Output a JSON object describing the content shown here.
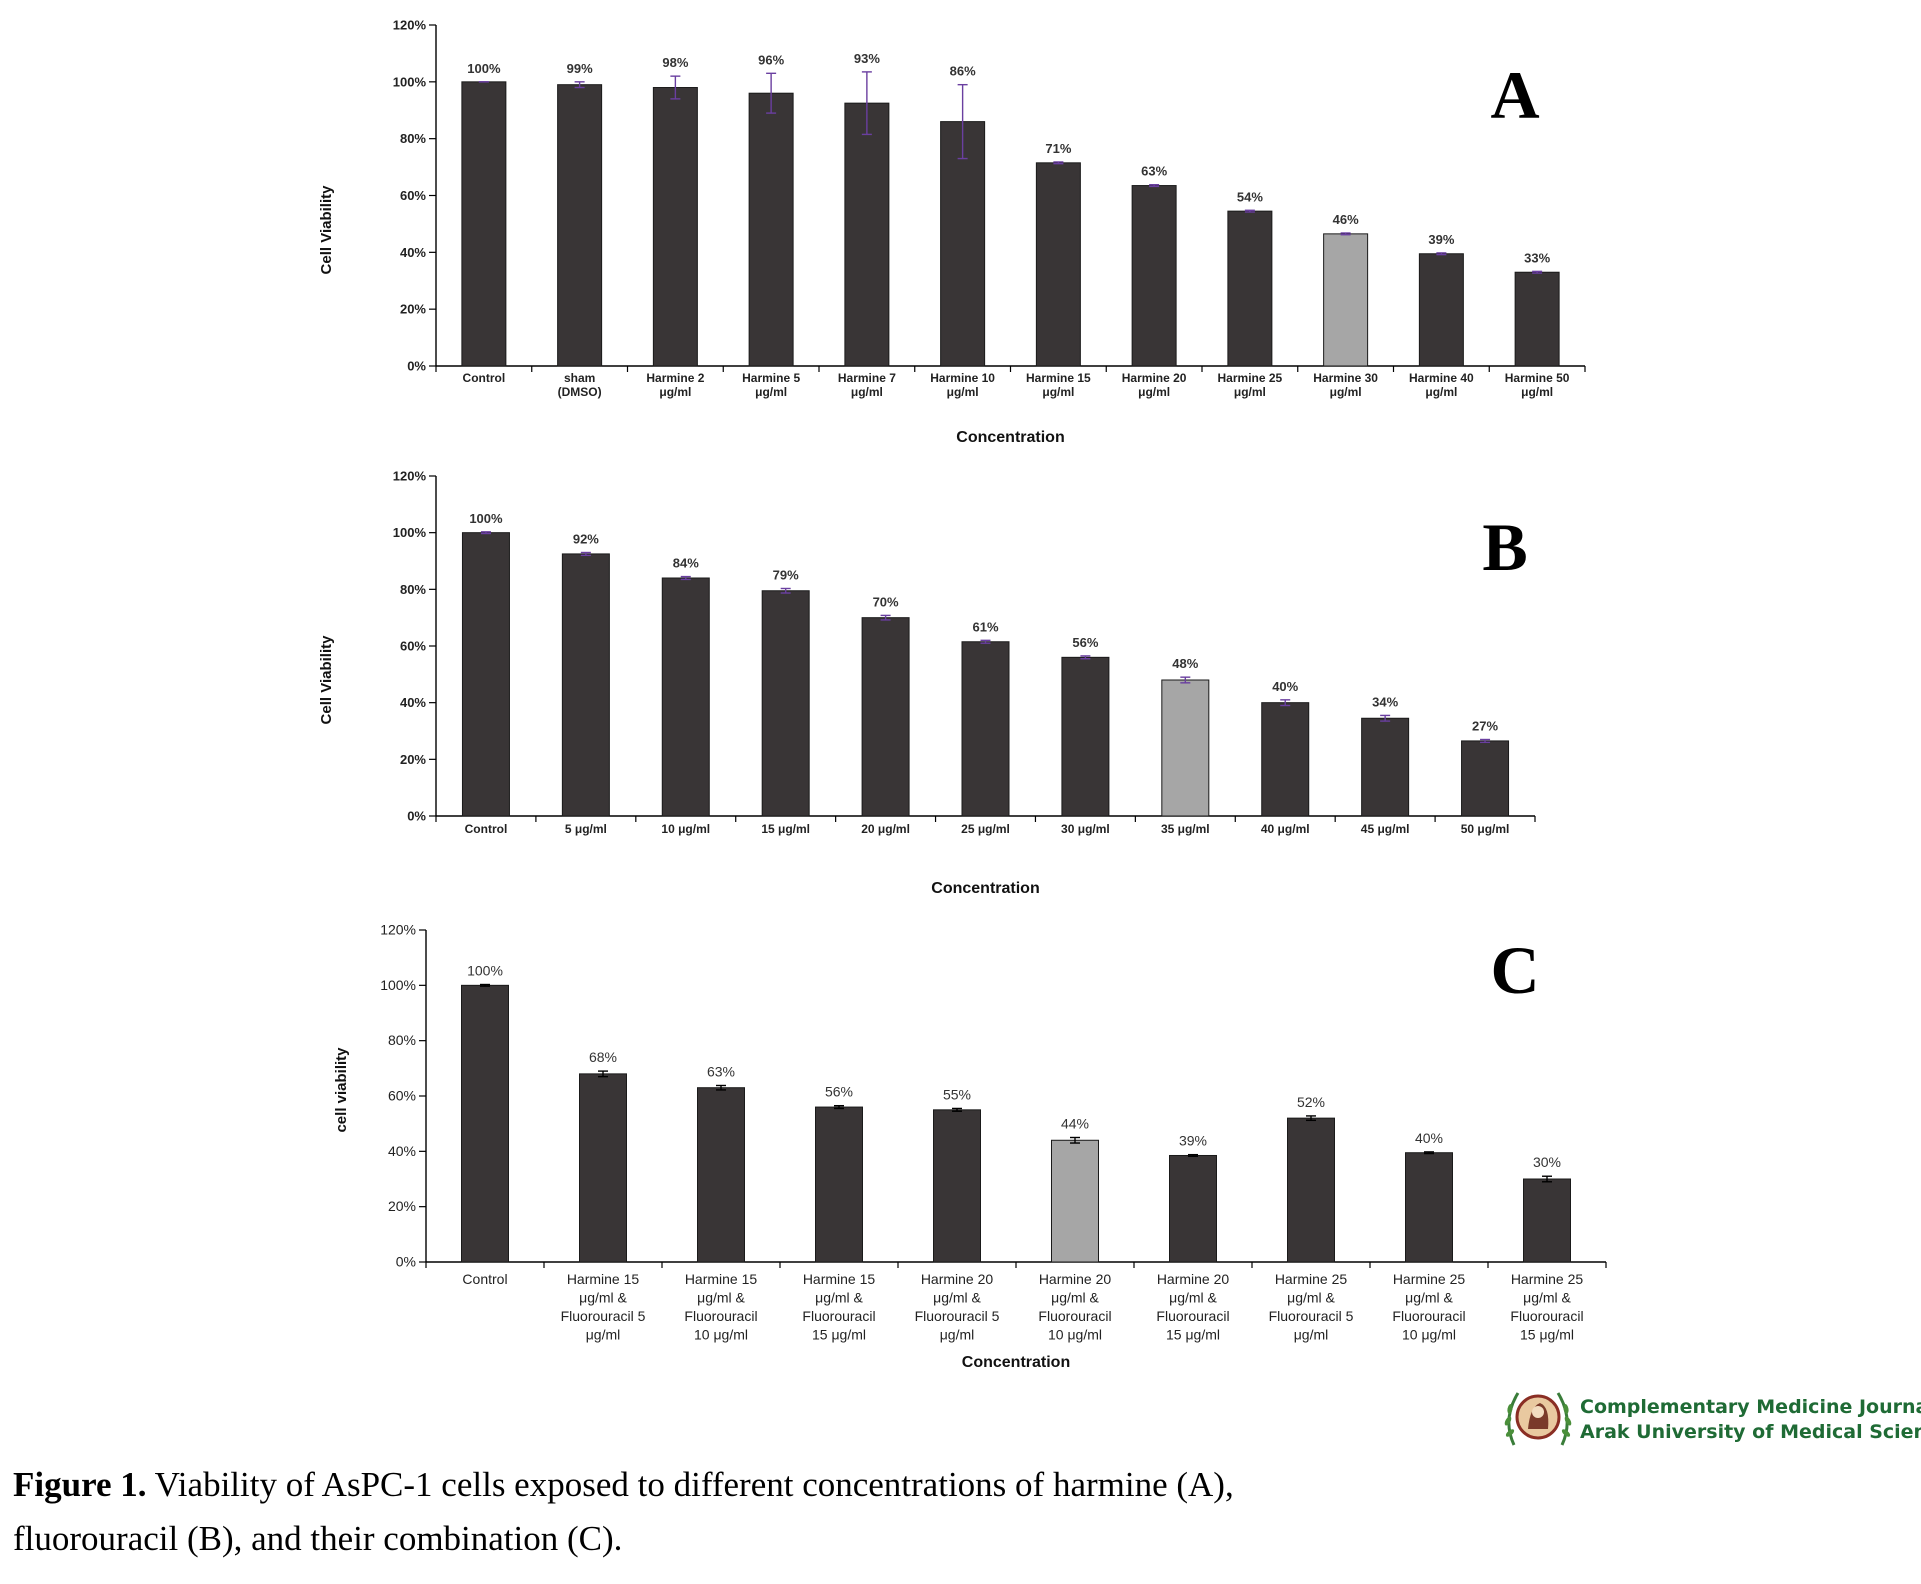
{
  "chart_data": [
    {
      "panel_letter": "A",
      "type": "bar",
      "ylabel": "Cell Viability",
      "xlabel": "Concentration",
      "ylim": [
        0,
        120
      ],
      "yticks": [
        "0%",
        "20%",
        "40%",
        "60%",
        "80%",
        "100%",
        "120%"
      ],
      "categories": [
        [
          "Control"
        ],
        [
          "sham",
          "(DMSO)"
        ],
        [
          "Harmine 2",
          "μg/ml"
        ],
        [
          "Harmine 5",
          "μg/ml"
        ],
        [
          "Harmine 7",
          "μg/ml"
        ],
        [
          "Harmine 10",
          "μg/ml"
        ],
        [
          "Harmine 15",
          "μg/ml"
        ],
        [
          "Harmine 20",
          "μg/ml"
        ],
        [
          "Harmine 25",
          "μg/ml"
        ],
        [
          "Harmine 30",
          "μg/ml"
        ],
        [
          "Harmine 40",
          "μg/ml"
        ],
        [
          "Harmine 50",
          "μg/ml"
        ]
      ],
      "values": [
        100,
        99,
        98,
        96,
        92.5,
        86,
        71.5,
        63.5,
        54.5,
        46.5,
        39.5,
        33
      ],
      "errors": [
        0,
        1,
        4,
        7,
        11,
        13,
        0.3,
        0.3,
        0.3,
        0.3,
        0.3,
        0.3
      ],
      "data_labels": [
        "100%",
        "99%",
        "98%",
        "96%",
        "93%",
        "86%",
        "71%",
        "63%",
        "54%",
        "46%",
        "39%",
        "33%"
      ],
      "highlight_index": 9,
      "bar_color": "#393536",
      "highlight_color": "#a6a6a6",
      "error_color": "#6a3fa0",
      "grid": false
    },
    {
      "panel_letter": "B",
      "type": "bar",
      "ylabel": "Cell Viability",
      "xlabel": "Concentration",
      "ylim": [
        0,
        120
      ],
      "yticks": [
        "0%",
        "20%",
        "40%",
        "60%",
        "80%",
        "100%",
        "120%"
      ],
      "categories": [
        [
          "Control"
        ],
        [
          "5 μg/ml"
        ],
        [
          "10 μg/ml"
        ],
        [
          "15 μg/ml"
        ],
        [
          "20 μg/ml"
        ],
        [
          "25 μg/ml"
        ],
        [
          "30 μg/ml"
        ],
        [
          "35 μg/ml"
        ],
        [
          "40 μg/ml"
        ],
        [
          "45 μg/ml"
        ],
        [
          "50 μg/ml"
        ]
      ],
      "values": [
        100,
        92.5,
        84,
        79.5,
        70,
        61.5,
        56,
        48,
        40,
        34.5,
        26.5
      ],
      "errors": [
        0.3,
        0.5,
        0.5,
        0.8,
        0.8,
        0.5,
        0.5,
        1,
        1,
        1,
        0.5
      ],
      "data_labels": [
        "100%",
        "92%",
        "84%",
        "79%",
        "70%",
        "61%",
        "56%",
        "48%",
        "40%",
        "34%",
        "27%"
      ],
      "highlight_index": 7,
      "bar_color": "#393536",
      "highlight_color": "#a6a6a6",
      "error_color": "#6a3fa0",
      "grid": false
    },
    {
      "panel_letter": "C",
      "type": "bar",
      "ylabel": "cell viability",
      "xlabel": "Concentration",
      "ylim": [
        0,
        120
      ],
      "yticks": [
        "0%",
        "20%",
        "40%",
        "60%",
        "80%",
        "100%",
        "120%"
      ],
      "categories": [
        [
          "Control"
        ],
        [
          "Harmine 15",
          "μg/ml &",
          "Fluorouracil 5",
          "μg/ml"
        ],
        [
          "Harmine 15",
          "μg/ml &",
          "Fluorouracil",
          "10 μg/ml"
        ],
        [
          "Harmine 15",
          "μg/ml &",
          "Fluorouracil",
          "15 μg/ml"
        ],
        [
          "Harmine 20",
          "μg/ml &",
          "Fluorouracil 5",
          "μg/ml"
        ],
        [
          "Harmine 20",
          "μg/ml &",
          "Fluorouracil",
          "10 μg/ml"
        ],
        [
          "Harmine 20",
          "μg/ml &",
          "Fluorouracil",
          "15 μg/ml"
        ],
        [
          "Harmine 25",
          "μg/ml &",
          "Fluorouracil 5",
          "μg/ml"
        ],
        [
          "Harmine 25",
          "μg/ml &",
          "Fluorouracil",
          "10 μg/ml"
        ],
        [
          "Harmine 25",
          "μg/ml &",
          "Fluorouracil",
          "15 μg/ml"
        ]
      ],
      "values": [
        100,
        68,
        63,
        56,
        55,
        44,
        38.5,
        52,
        39.5,
        30
      ],
      "errors": [
        0.3,
        1,
        0.8,
        0.5,
        0.5,
        1,
        0.3,
        0.8,
        0.3,
        1
      ],
      "data_labels": [
        "100%",
        "68%",
        "63%",
        "56%",
        "55%",
        "44%",
        "39%",
        "52%",
        "40%",
        "30%"
      ],
      "highlight_index": 5,
      "bar_color": "#393536",
      "highlight_color": "#a6a6a6",
      "error_color": "#000000",
      "grid": false
    }
  ],
  "logo": {
    "line1": "Complementary Medicine Journal",
    "line2": "Arak University of Medical Sciences"
  },
  "caption": {
    "label": "Figure 1.",
    "text": " Viability of AsPC-1 cells exposed to different concentrations of harmine (A), fluorouracil (B), and their combination (C)."
  }
}
